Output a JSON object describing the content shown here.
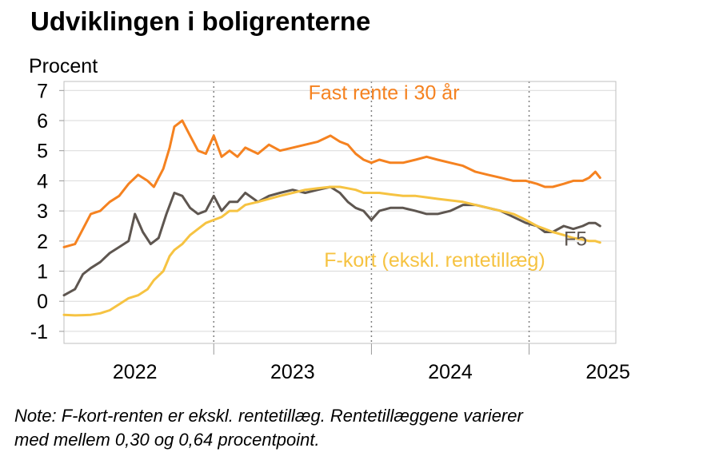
{
  "chart_data": {
    "type": "line",
    "title": "Udviklingen i boligrenterne",
    "ylabel": "Procent",
    "xlabel": "",
    "ylim": [
      -1.4,
      7.3
    ],
    "yticks": [
      -1,
      0,
      1,
      2,
      3,
      4,
      5,
      6,
      7
    ],
    "xlim": [
      2021.55,
      2025.05
    ],
    "xticks": [
      {
        "label": "2022",
        "x": 2022.0
      },
      {
        "label": "2023",
        "x": 2023.0
      },
      {
        "label": "2024",
        "x": 2024.0
      },
      {
        "label": "2025",
        "x": 2025.0
      }
    ],
    "grid": true,
    "series": [
      {
        "name": "Fast rente i 30 år",
        "color": "#F58220",
        "x": [
          2021.55,
          2021.62,
          2021.67,
          2021.72,
          2021.78,
          2021.84,
          2021.9,
          2021.96,
          2022.02,
          2022.08,
          2022.12,
          2022.18,
          2022.22,
          2022.25,
          2022.3,
          2022.35,
          2022.4,
          2022.45,
          2022.5,
          2022.55,
          2022.6,
          2022.65,
          2022.7,
          2022.78,
          2022.85,
          2022.92,
          2023.0,
          2023.08,
          2023.16,
          2023.24,
          2023.3,
          2023.35,
          2023.4,
          2023.45,
          2023.5,
          2023.55,
          2023.62,
          2023.7,
          2023.78,
          2023.85,
          2023.92,
          2024.0,
          2024.08,
          2024.16,
          2024.24,
          2024.32,
          2024.4,
          2024.48,
          2024.55,
          2024.6,
          2024.65,
          2024.72,
          2024.78,
          2024.84,
          2024.88,
          2024.92,
          2024.95
        ],
        "y": [
          1.8,
          1.9,
          2.4,
          2.9,
          3.0,
          3.3,
          3.5,
          3.9,
          4.2,
          4.0,
          3.8,
          4.4,
          5.1,
          5.8,
          6.0,
          5.5,
          5.0,
          4.9,
          5.5,
          4.8,
          5.0,
          4.8,
          5.1,
          4.9,
          5.2,
          5.0,
          5.1,
          5.2,
          5.3,
          5.5,
          5.3,
          5.2,
          4.9,
          4.7,
          4.6,
          4.7,
          4.6,
          4.6,
          4.7,
          4.8,
          4.7,
          4.6,
          4.5,
          4.3,
          4.2,
          4.1,
          4.0,
          4.0,
          3.9,
          3.8,
          3.8,
          3.9,
          4.0,
          4.0,
          4.1,
          4.3,
          4.1
        ]
      },
      {
        "name": "F5",
        "color": "#5E5650",
        "x": [
          2021.55,
          2021.62,
          2021.67,
          2021.72,
          2021.78,
          2021.84,
          2021.9,
          2021.96,
          2022.0,
          2022.05,
          2022.1,
          2022.15,
          2022.2,
          2022.25,
          2022.3,
          2022.35,
          2022.4,
          2022.45,
          2022.5,
          2022.55,
          2022.6,
          2022.65,
          2022.7,
          2022.78,
          2022.85,
          2022.92,
          2023.0,
          2023.08,
          2023.16,
          2023.24,
          2023.3,
          2023.35,
          2023.4,
          2023.45,
          2023.5,
          2023.55,
          2023.62,
          2023.7,
          2023.78,
          2023.85,
          2023.92,
          2024.0,
          2024.08,
          2024.16,
          2024.24,
          2024.32,
          2024.4,
          2024.48,
          2024.55,
          2024.6,
          2024.65,
          2024.72,
          2024.78,
          2024.84,
          2024.88,
          2024.92,
          2024.95
        ],
        "y": [
          0.2,
          0.4,
          0.9,
          1.1,
          1.3,
          1.6,
          1.8,
          2.0,
          2.9,
          2.3,
          1.9,
          2.1,
          2.9,
          3.6,
          3.5,
          3.1,
          2.9,
          3.0,
          3.5,
          3.0,
          3.3,
          3.3,
          3.6,
          3.3,
          3.5,
          3.6,
          3.7,
          3.6,
          3.7,
          3.8,
          3.6,
          3.3,
          3.1,
          3.0,
          2.7,
          3.0,
          3.1,
          3.1,
          3.0,
          2.9,
          2.9,
          3.0,
          3.2,
          3.2,
          3.1,
          3.0,
          2.8,
          2.6,
          2.5,
          2.3,
          2.3,
          2.5,
          2.4,
          2.5,
          2.6,
          2.6,
          2.5
        ]
      },
      {
        "name": "F-kort (ekskl. rentetillæg)",
        "color": "#F6C342",
        "x": [
          2021.55,
          2021.62,
          2021.67,
          2021.72,
          2021.78,
          2021.84,
          2021.9,
          2021.96,
          2022.02,
          2022.08,
          2022.12,
          2022.18,
          2022.22,
          2022.25,
          2022.3,
          2022.35,
          2022.4,
          2022.45,
          2022.5,
          2022.55,
          2022.6,
          2022.65,
          2022.7,
          2022.78,
          2022.85,
          2022.92,
          2023.0,
          2023.08,
          2023.16,
          2023.24,
          2023.3,
          2023.35,
          2023.4,
          2023.45,
          2023.5,
          2023.55,
          2023.62,
          2023.7,
          2023.78,
          2023.85,
          2023.92,
          2024.0,
          2024.08,
          2024.16,
          2024.24,
          2024.32,
          2024.4,
          2024.48,
          2024.55,
          2024.6,
          2024.65,
          2024.72,
          2024.78,
          2024.84,
          2024.88,
          2024.92,
          2024.95
        ],
        "y": [
          -0.45,
          -0.47,
          -0.46,
          -0.45,
          -0.4,
          -0.3,
          -0.1,
          0.1,
          0.2,
          0.4,
          0.7,
          1.0,
          1.5,
          1.7,
          1.9,
          2.2,
          2.4,
          2.6,
          2.7,
          2.8,
          3.0,
          3.0,
          3.2,
          3.3,
          3.4,
          3.5,
          3.6,
          3.7,
          3.75,
          3.8,
          3.8,
          3.75,
          3.7,
          3.6,
          3.6,
          3.6,
          3.55,
          3.5,
          3.5,
          3.45,
          3.4,
          3.35,
          3.3,
          3.2,
          3.1,
          3.0,
          2.9,
          2.7,
          2.5,
          2.4,
          2.3,
          2.2,
          2.1,
          2.05,
          2.0,
          2.0,
          1.95
        ]
      }
    ],
    "vlines": [
      2022.5,
      2023.5,
      2024.5
    ],
    "annotations": [
      {
        "text": "Fast rente i 30 år",
        "color": "#F58220",
        "x": 2023.1,
        "y": 6.7
      },
      {
        "text": "F-kort (ekskl. rentetillæg)",
        "color": "#F6C342",
        "x": 2023.2,
        "y": 1.15
      },
      {
        "text": "F5",
        "color": "#5E5650",
        "x": 2024.72,
        "y": 1.85
      }
    ]
  },
  "note": {
    "line1": "Note: F-kort-renten er ekskl. rentetillæg. Rentetillæggene varierer",
    "line2": "med mellem 0,30 og 0,64 procentpoint."
  }
}
